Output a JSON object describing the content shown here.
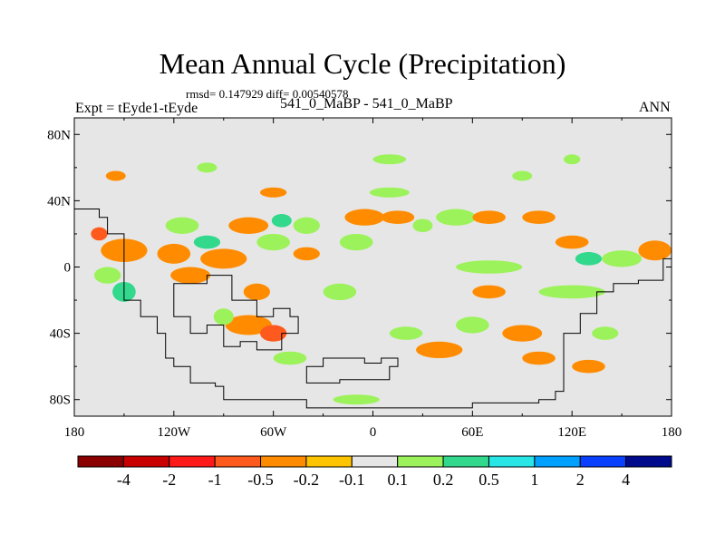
{
  "chart_data": {
    "type": "heatmap",
    "title": "Mean Annual Cycle (Precipitation)",
    "stats_text": "rmsd= 0.147929 diff= 0.00540578",
    "left_string": "Expt = tEyde1-tEyde",
    "center_string": "541_0_MaBP - 541_0_MaBP",
    "right_string": "ANN",
    "xlim": [
      -180,
      180
    ],
    "ylim": [
      -90,
      90
    ],
    "x_ticks": [
      {
        "value": -180,
        "label": "180"
      },
      {
        "value": -120,
        "label": "120W"
      },
      {
        "value": -60,
        "label": "60W"
      },
      {
        "value": 0,
        "label": "0"
      },
      {
        "value": 60,
        "label": "60E"
      },
      {
        "value": 120,
        "label": "120E"
      },
      {
        "value": 180,
        "label": "180"
      }
    ],
    "y_ticks": [
      {
        "value": 80,
        "label": "80N"
      },
      {
        "value": 40,
        "label": "40N"
      },
      {
        "value": 0,
        "label": "0"
      },
      {
        "value": -40,
        "label": "40S"
      },
      {
        "value": -80,
        "label": "80S"
      }
    ],
    "background_color": "#e6e6e6",
    "colorbar": {
      "colors": [
        "#8b0000",
        "#c80000",
        "#ff1a1a",
        "#ff5a1e",
        "#ff8c00",
        "#ffc400",
        "#e6e6e6",
        "#9cf25a",
        "#32d88c",
        "#28e6e6",
        "#00a0ff",
        "#0a40ff",
        "#000a8c"
      ],
      "labels": [
        "-4",
        "-2",
        "-1",
        "-0.5",
        "-0.2",
        "-0.1",
        "0.1",
        "0.2",
        "0.5",
        "1",
        "2",
        "4"
      ]
    },
    "anomaly_blobs": [
      {
        "lon": -150,
        "lat": 10,
        "rx": 14,
        "ry": 7,
        "level": -0.2
      },
      {
        "lon": -160,
        "lat": -5,
        "rx": 8,
        "ry": 5,
        "level": 0.2
      },
      {
        "lon": -165,
        "lat": 20,
        "rx": 5,
        "ry": 4,
        "level": -0.5
      },
      {
        "lon": -150,
        "lat": -15,
        "rx": 7,
        "ry": 6,
        "level": 0.5
      },
      {
        "lon": -120,
        "lat": 8,
        "rx": 10,
        "ry": 6,
        "level": -0.2
      },
      {
        "lon": -110,
        "lat": -5,
        "rx": 12,
        "ry": 5,
        "level": -0.2
      },
      {
        "lon": -115,
        "lat": 25,
        "rx": 10,
        "ry": 5,
        "level": 0.2
      },
      {
        "lon": -100,
        "lat": 15,
        "rx": 8,
        "ry": 4,
        "level": 0.5
      },
      {
        "lon": -90,
        "lat": 5,
        "rx": 14,
        "ry": 6,
        "level": -0.2
      },
      {
        "lon": -75,
        "lat": 25,
        "rx": 12,
        "ry": 5,
        "level": -0.2
      },
      {
        "lon": -60,
        "lat": 15,
        "rx": 10,
        "ry": 5,
        "level": 0.2
      },
      {
        "lon": -55,
        "lat": 28,
        "rx": 6,
        "ry": 4,
        "level": 0.5
      },
      {
        "lon": -40,
        "lat": 25,
        "rx": 8,
        "ry": 5,
        "level": 0.2
      },
      {
        "lon": -70,
        "lat": -15,
        "rx": 8,
        "ry": 5,
        "level": -0.2
      },
      {
        "lon": -75,
        "lat": -35,
        "rx": 14,
        "ry": 6,
        "level": -0.2
      },
      {
        "lon": -60,
        "lat": -40,
        "rx": 8,
        "ry": 5,
        "level": -0.5
      },
      {
        "lon": -90,
        "lat": -30,
        "rx": 6,
        "ry": 5,
        "level": 0.2
      },
      {
        "lon": -50,
        "lat": -55,
        "rx": 10,
        "ry": 4,
        "level": 0.2
      },
      {
        "lon": -20,
        "lat": -15,
        "rx": 10,
        "ry": 5,
        "level": 0.2
      },
      {
        "lon": -10,
        "lat": 15,
        "rx": 10,
        "ry": 5,
        "level": 0.2
      },
      {
        "lon": -5,
        "lat": 30,
        "rx": 12,
        "ry": 5,
        "level": -0.2
      },
      {
        "lon": 15,
        "lat": 30,
        "rx": 10,
        "ry": 4,
        "level": -0.2
      },
      {
        "lon": 30,
        "lat": 25,
        "rx": 6,
        "ry": 4,
        "level": 0.2
      },
      {
        "lon": 50,
        "lat": 30,
        "rx": 12,
        "ry": 5,
        "level": 0.2
      },
      {
        "lon": 70,
        "lat": 30,
        "rx": 10,
        "ry": 4,
        "level": -0.2
      },
      {
        "lon": 100,
        "lat": 30,
        "rx": 10,
        "ry": 4,
        "level": -0.2
      },
      {
        "lon": 70,
        "lat": 0,
        "rx": 20,
        "ry": 4,
        "level": 0.2
      },
      {
        "lon": 120,
        "lat": -15,
        "rx": 20,
        "ry": 4,
        "level": 0.2
      },
      {
        "lon": 70,
        "lat": -15,
        "rx": 10,
        "ry": 4,
        "level": -0.2
      },
      {
        "lon": 60,
        "lat": -35,
        "rx": 10,
        "ry": 5,
        "level": 0.2
      },
      {
        "lon": 90,
        "lat": -40,
        "rx": 12,
        "ry": 5,
        "level": -0.2
      },
      {
        "lon": 40,
        "lat": -50,
        "rx": 14,
        "ry": 5,
        "level": -0.2
      },
      {
        "lon": 20,
        "lat": -40,
        "rx": 10,
        "ry": 4,
        "level": 0.2
      },
      {
        "lon": 100,
        "lat": -55,
        "rx": 10,
        "ry": 4,
        "level": -0.2
      },
      {
        "lon": 130,
        "lat": -60,
        "rx": 10,
        "ry": 4,
        "level": -0.2
      },
      {
        "lon": 140,
        "lat": -40,
        "rx": 8,
        "ry": 4,
        "level": 0.2
      },
      {
        "lon": 170,
        "lat": 10,
        "rx": 10,
        "ry": 6,
        "level": -0.2
      },
      {
        "lon": 150,
        "lat": 5,
        "rx": 12,
        "ry": 5,
        "level": 0.2
      },
      {
        "lon": 120,
        "lat": 15,
        "rx": 10,
        "ry": 4,
        "level": -0.2
      },
      {
        "lon": 130,
        "lat": 5,
        "rx": 8,
        "ry": 4,
        "level": 0.5
      },
      {
        "lon": -155,
        "lat": 55,
        "rx": 6,
        "ry": 3,
        "level": -0.2
      },
      {
        "lon": -100,
        "lat": 60,
        "rx": 6,
        "ry": 3,
        "level": 0.2
      },
      {
        "lon": 10,
        "lat": 65,
        "rx": 10,
        "ry": 3,
        "level": 0.2
      },
      {
        "lon": 90,
        "lat": 55,
        "rx": 6,
        "ry": 3,
        "level": 0.2
      },
      {
        "lon": 120,
        "lat": 65,
        "rx": 5,
        "ry": 3,
        "level": 0.2
      },
      {
        "lon": -10,
        "lat": -80,
        "rx": 14,
        "ry": 3,
        "level": 0.2
      },
      {
        "lon": -40,
        "lat": 8,
        "rx": 8,
        "ry": 4,
        "level": -0.2
      },
      {
        "lon": 10,
        "lat": 45,
        "rx": 12,
        "ry": 3,
        "level": 0.2
      },
      {
        "lon": -60,
        "lat": 45,
        "rx": 8,
        "ry": 3,
        "level": -0.2
      }
    ],
    "land_outline": [
      [
        -180,
        35
      ],
      [
        -170,
        35
      ],
      [
        -165,
        30
      ],
      [
        -160,
        20
      ],
      [
        -150,
        0
      ],
      [
        -150,
        -20
      ],
      [
        -140,
        -30
      ],
      [
        -130,
        -40
      ],
      [
        -125,
        -55
      ],
      [
        -120,
        -60
      ],
      [
        -110,
        -70
      ],
      [
        -95,
        -72
      ],
      [
        -90,
        -80
      ],
      [
        -40,
        -85
      ],
      [
        10,
        -85
      ],
      [
        60,
        -82
      ],
      [
        100,
        -80
      ],
      [
        110,
        -75
      ],
      [
        115,
        -60
      ],
      [
        115,
        -40
      ],
      [
        125,
        -28
      ],
      [
        135,
        -15
      ],
      [
        145,
        -10
      ],
      [
        160,
        -8
      ],
      [
        175,
        5
      ],
      [
        180,
        10
      ]
    ],
    "land_outline_2": [
      [
        -120,
        -10
      ],
      [
        -100,
        -5
      ],
      [
        -90,
        -5
      ],
      [
        -85,
        -20
      ],
      [
        -70,
        -30
      ],
      [
        -60,
        -25
      ],
      [
        -50,
        -30
      ],
      [
        -45,
        -40
      ],
      [
        -55,
        -50
      ],
      [
        -70,
        -45
      ],
      [
        -80,
        -48
      ],
      [
        -90,
        -35
      ],
      [
        -100,
        -40
      ],
      [
        -110,
        -30
      ],
      [
        -120,
        -10
      ]
    ],
    "land_outline_3": [
      [
        -40,
        -60
      ],
      [
        -30,
        -55
      ],
      [
        -15,
        -55
      ],
      [
        -5,
        -58
      ],
      [
        5,
        -55
      ],
      [
        15,
        -60
      ],
      [
        10,
        -68
      ],
      [
        -20,
        -70
      ],
      [
        -40,
        -65
      ],
      [
        -40,
        -60
      ]
    ]
  }
}
